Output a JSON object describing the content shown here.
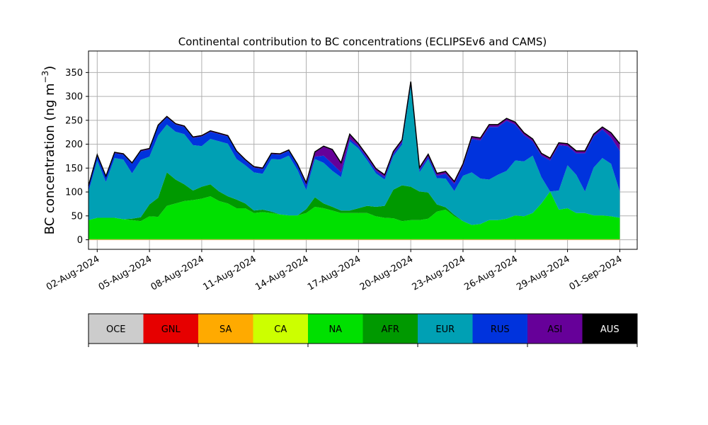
{
  "chart_data": {
    "type": "area",
    "title": "Continental contribution to BC concentrations (ECLIPSEv6 and CAMS)",
    "ylabel": "BC concentration (ng m",
    "ylabel_sup": "−3",
    "ylabel_close": ")",
    "xlabel": "",
    "ylim": [
      -20,
      395
    ],
    "grid": true,
    "stacked": true,
    "x_range": [
      "2024-08-01T12:00",
      "2024-09-02T00:00"
    ],
    "y_ticks": [
      0,
      50,
      100,
      150,
      200,
      250,
      300,
      350
    ],
    "x_ticks": [
      {
        "date": "2024-08-02",
        "label": "02-Aug-2024"
      },
      {
        "date": "2024-08-05",
        "label": "05-Aug-2024"
      },
      {
        "date": "2024-08-08",
        "label": "08-Aug-2024"
      },
      {
        "date": "2024-08-11",
        "label": "11-Aug-2024"
      },
      {
        "date": "2024-08-14",
        "label": "14-Aug-2024"
      },
      {
        "date": "2024-08-17",
        "label": "17-Aug-2024"
      },
      {
        "date": "2024-08-20",
        "label": "20-Aug-2024"
      },
      {
        "date": "2024-08-23",
        "label": "23-Aug-2024"
      },
      {
        "date": "2024-08-26",
        "label": "26-Aug-2024"
      },
      {
        "date": "2024-08-29",
        "label": "29-Aug-2024"
      },
      {
        "date": "2024-09-01",
        "label": "01-Sep-2024"
      }
    ],
    "x": [
      "2024-08-01T12:00",
      "2024-08-02T00:00",
      "2024-08-02T12:00",
      "2024-08-03T00:00",
      "2024-08-03T12:00",
      "2024-08-04T00:00",
      "2024-08-04T12:00",
      "2024-08-05T00:00",
      "2024-08-05T12:00",
      "2024-08-06T00:00",
      "2024-08-06T12:00",
      "2024-08-07T00:00",
      "2024-08-07T12:00",
      "2024-08-08T00:00",
      "2024-08-08T12:00",
      "2024-08-09T00:00",
      "2024-08-09T12:00",
      "2024-08-10T00:00",
      "2024-08-10T12:00",
      "2024-08-11T00:00",
      "2024-08-11T12:00",
      "2024-08-12T00:00",
      "2024-08-12T12:00",
      "2024-08-13T00:00",
      "2024-08-13T12:00",
      "2024-08-14T00:00",
      "2024-08-14T12:00",
      "2024-08-15T00:00",
      "2024-08-15T12:00",
      "2024-08-16T00:00",
      "2024-08-16T12:00",
      "2024-08-17T00:00",
      "2024-08-17T12:00",
      "2024-08-18T00:00",
      "2024-08-18T12:00",
      "2024-08-19T00:00",
      "2024-08-19T12:00",
      "2024-08-20T00:00",
      "2024-08-20T12:00",
      "2024-08-21T00:00",
      "2024-08-21T12:00",
      "2024-08-22T00:00",
      "2024-08-22T12:00",
      "2024-08-23T00:00",
      "2024-08-23T12:00",
      "2024-08-24T00:00",
      "2024-08-24T12:00",
      "2024-08-25T00:00",
      "2024-08-25T12:00",
      "2024-08-26T00:00",
      "2024-08-26T12:00",
      "2024-08-27T00:00",
      "2024-08-27T12:00",
      "2024-08-28T00:00",
      "2024-08-28T12:00",
      "2024-08-29T00:00",
      "2024-08-29T12:00",
      "2024-08-30T00:00",
      "2024-08-30T12:00",
      "2024-08-31T00:00",
      "2024-08-31T12:00",
      "2024-09-01T00:00"
    ],
    "series": [
      {
        "name": "OCE",
        "color": "#cccccc",
        "values": [
          0,
          0,
          0,
          0,
          0,
          0,
          0,
          0,
          0,
          0,
          0,
          0,
          0,
          0,
          0,
          0,
          0,
          0,
          0,
          0,
          0,
          0,
          0,
          0,
          0,
          0,
          0,
          0,
          0,
          0,
          0,
          0,
          0,
          0,
          0,
          0,
          0,
          0,
          0,
          0,
          0,
          0,
          0,
          0,
          0,
          0,
          0,
          0,
          0,
          0,
          0,
          0,
          0,
          0,
          0,
          0,
          0,
          0,
          0,
          0,
          0,
          0
        ]
      },
      {
        "name": "GNL",
        "color": "#e60000",
        "values": [
          0,
          0,
          0,
          0,
          0,
          0,
          0,
          0,
          0,
          0,
          0,
          0,
          0,
          0,
          0,
          0,
          0,
          0,
          0,
          0,
          0,
          0,
          0,
          0,
          0,
          0,
          0,
          0,
          0,
          0,
          0,
          0,
          0,
          0,
          0,
          0,
          0,
          0,
          0,
          0,
          0,
          0,
          0,
          0,
          0,
          0,
          0,
          0,
          0,
          0,
          0,
          0,
          0,
          0,
          0,
          0,
          0,
          0,
          0,
          0,
          0,
          0
        ]
      },
      {
        "name": "SA",
        "color": "#ffaa00",
        "values": [
          1,
          1,
          1,
          1,
          1,
          1,
          1,
          1,
          1,
          1,
          1,
          1,
          1,
          1,
          1,
          1,
          1,
          1,
          1,
          1,
          1,
          1,
          1,
          1,
          1,
          1,
          1,
          1,
          1,
          1,
          1,
          1,
          1,
          1,
          1,
          1,
          1,
          1,
          1,
          1,
          1,
          1,
          1,
          1,
          1,
          1,
          1,
          1,
          1,
          1,
          1,
          1,
          1,
          1,
          1,
          1,
          1,
          1,
          1,
          1,
          1,
          1
        ]
      },
      {
        "name": "CA",
        "color": "#ccff00",
        "values": [
          0,
          0,
          0,
          0,
          0,
          0,
          0,
          0,
          0,
          0,
          0,
          0,
          0,
          0,
          0,
          0,
          0,
          0,
          0,
          0,
          0,
          0,
          0,
          0,
          0,
          0,
          0,
          0,
          0,
          0,
          0,
          0,
          0,
          0,
          0,
          0,
          0,
          0,
          0,
          0,
          0,
          0,
          0,
          0,
          0,
          0,
          0,
          0,
          0,
          0,
          0,
          0,
          0,
          0,
          0,
          0,
          0,
          0,
          0,
          0,
          0,
          0
        ]
      },
      {
        "name": "NA",
        "color": "#00e000",
        "values": [
          40,
          45,
          45,
          45,
          42,
          40,
          38,
          48,
          47,
          70,
          75,
          80,
          82,
          85,
          90,
          80,
          75,
          65,
          65,
          55,
          57,
          55,
          52,
          50,
          50,
          55,
          68,
          65,
          60,
          55,
          55,
          55,
          55,
          48,
          45,
          44,
          38,
          40,
          40,
          43,
          58,
          62,
          48,
          38,
          30,
          32,
          40,
          40,
          43,
          50,
          48,
          55,
          75,
          100,
          62,
          65,
          55,
          55,
          50,
          50,
          48,
          45
        ]
      },
      {
        "name": "AFR",
        "color": "#009900",
        "values": [
          0,
          0,
          0,
          0,
          0,
          3,
          8,
          25,
          40,
          70,
          50,
          35,
          20,
          25,
          25,
          20,
          15,
          18,
          10,
          5,
          5,
          3,
          0,
          0,
          0,
          8,
          20,
          10,
          8,
          5,
          5,
          10,
          15,
          20,
          25,
          60,
          75,
          70,
          60,
          55,
          15,
          5,
          3,
          0,
          0,
          0,
          0,
          0,
          0,
          0,
          0,
          0,
          0,
          0,
          0,
          0,
          0,
          0,
          0,
          0,
          0,
          0
        ]
      },
      {
        "name": "EUR",
        "color": "#00a0b4",
        "values": [
          60,
          120,
          75,
          125,
          125,
          95,
          120,
          100,
          130,
          100,
          100,
          105,
          95,
          85,
          95,
          105,
          110,
          85,
          80,
          80,
          75,
          110,
          115,
          125,
          95,
          40,
          80,
          85,
          75,
          70,
          145,
          125,
          95,
          70,
          55,
          70,
          85,
          210,
          40,
          70,
          55,
          60,
          50,
          95,
          110,
          95,
          85,
          95,
          100,
          115,
          115,
          120,
          55,
          0,
          40,
          90,
          80,
          45,
          100,
          120,
          110,
          55
        ]
      },
      {
        "name": "RUS",
        "color": "#0033dd",
        "values": [
          10,
          10,
          10,
          10,
          10,
          20,
          18,
          15,
          20,
          15,
          15,
          15,
          15,
          20,
          15,
          15,
          15,
          15,
          10,
          10,
          10,
          10,
          10,
          10,
          10,
          10,
          5,
          15,
          15,
          10,
          5,
          5,
          5,
          5,
          5,
          5,
          5,
          5,
          5,
          5,
          5,
          10,
          15,
          20,
          70,
          80,
          110,
          100,
          105,
          75,
          55,
          30,
          45,
          65,
          95,
          40,
          45,
          80,
          65,
          60,
          55,
          85
        ]
      },
      {
        "name": "ASI",
        "color": "#660099",
        "values": [
          2,
          2,
          2,
          2,
          2,
          2,
          2,
          2,
          2,
          2,
          2,
          2,
          2,
          2,
          2,
          2,
          2,
          2,
          2,
          2,
          2,
          2,
          2,
          2,
          2,
          5,
          10,
          20,
          30,
          20,
          10,
          5,
          5,
          5,
          5,
          5,
          5,
          5,
          5,
          5,
          5,
          5,
          5,
          5,
          5,
          5,
          5,
          5,
          5,
          5,
          5,
          5,
          5,
          5,
          5,
          5,
          5,
          5,
          5,
          5,
          10,
          15
        ]
      },
      {
        "name": "AUS",
        "color": "#000000",
        "values": [
          0,
          0,
          0,
          0,
          0,
          0,
          0,
          0,
          0,
          0,
          0,
          0,
          0,
          0,
          0,
          0,
          0,
          0,
          0,
          0,
          0,
          0,
          0,
          0,
          0,
          0,
          0,
          0,
          0,
          0,
          0,
          0,
          0,
          0,
          0,
          0,
          0,
          0,
          0,
          0,
          0,
          0,
          0,
          0,
          0,
          0,
          0,
          0,
          0,
          0,
          0,
          0,
          0,
          0,
          0,
          0,
          0,
          0,
          0,
          0,
          0,
          0
        ]
      }
    ]
  }
}
